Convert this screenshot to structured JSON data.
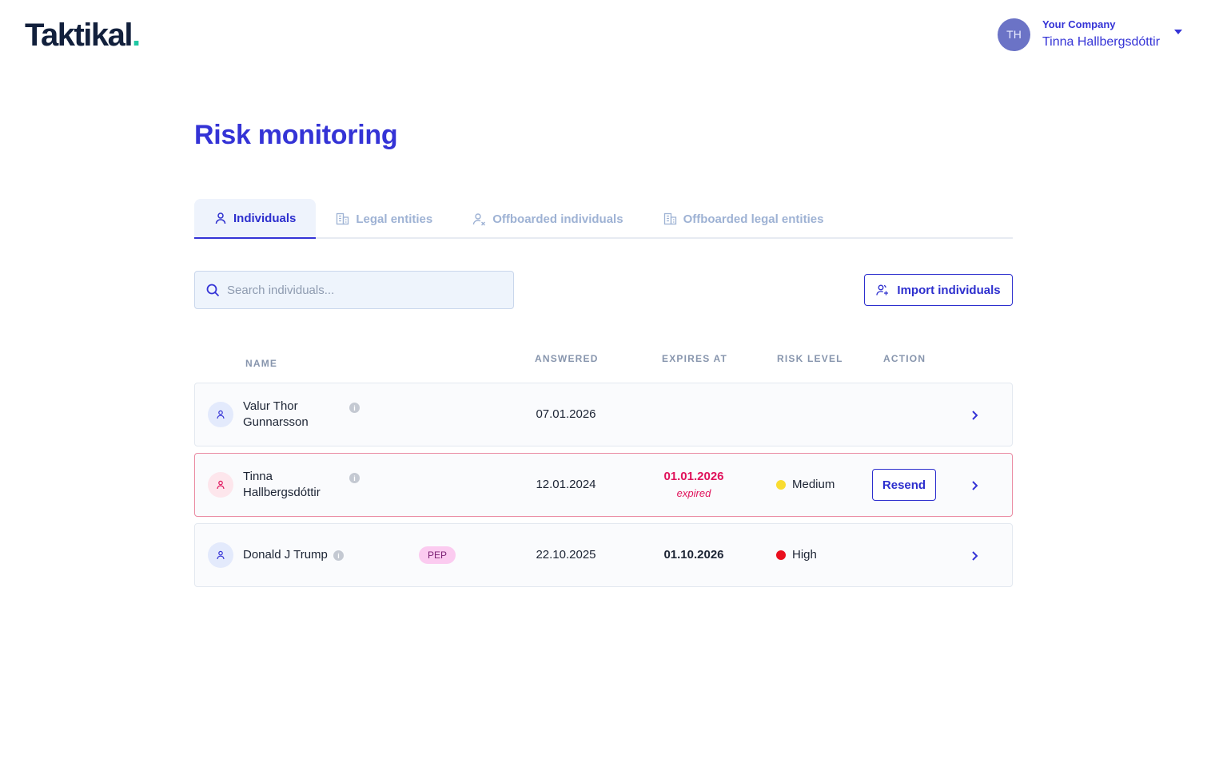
{
  "brand": {
    "logo_text": "Taktikal",
    "logo_dot": "."
  },
  "account": {
    "initials": "TH",
    "company": "Your Company",
    "user": "Tinna Hallbergsdóttir"
  },
  "page": {
    "title": "Risk monitoring"
  },
  "tabs": [
    {
      "label": "Individuals",
      "icon": "person-icon",
      "active": true
    },
    {
      "label": "Legal entities",
      "icon": "building-icon",
      "active": false
    },
    {
      "label": "Offboarded individuals",
      "icon": "person-remove-icon",
      "active": false
    },
    {
      "label": "Offboarded legal entities",
      "icon": "building-icon",
      "active": false
    }
  ],
  "search": {
    "placeholder": "Search individuals..."
  },
  "import_button": {
    "label": "Import individuals"
  },
  "table": {
    "headers": {
      "name": "NAME",
      "answered": "ANSWERED",
      "expires_at": "EXPIRES AT",
      "risk_level": "RISK LEVEL",
      "action": "ACTION"
    },
    "rows": [
      {
        "name_line1": "Valur Thor",
        "name_line2": "Gunnarsson",
        "answered": "07.01.2026",
        "expires_at": "",
        "risk_level": "",
        "action": ""
      },
      {
        "name_line1": "Tinna",
        "name_line2": "Hallbergsdóttir",
        "answered": "12.01.2024",
        "expires_at": "01.01.2026",
        "expired_label": "expired",
        "risk_level": "Medium",
        "risk_color": "#f9dc31",
        "action": "Resend"
      },
      {
        "name_line1": "Donald J Trump",
        "tag": "PEP",
        "answered": "22.10.2025",
        "expires_at": "01.10.2026",
        "risk_level": "High",
        "risk_color": "#ea0f1e",
        "action": ""
      }
    ]
  },
  "colors": {
    "primary": "#3433d6",
    "accent_dot": "#1fc8a3",
    "expired": "#e0125b"
  }
}
